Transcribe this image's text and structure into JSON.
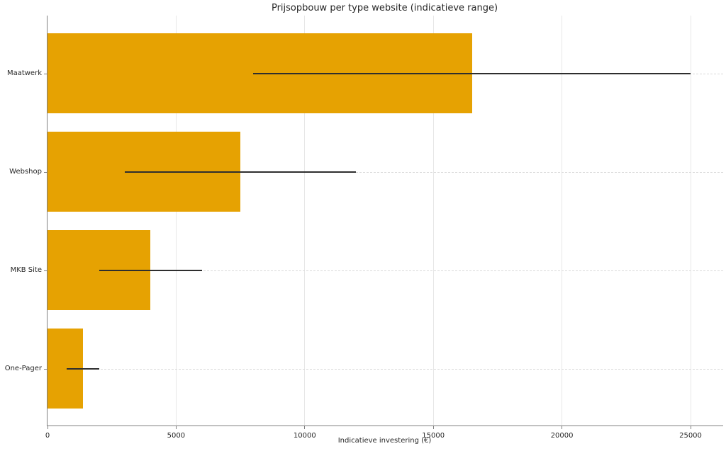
{
  "chart_data": {
    "type": "bar",
    "orientation": "horizontal",
    "title": "Prijsopbouw per type website (indicatieve range)",
    "xlabel": "Indicatieve investering (€)",
    "ylabel": "",
    "categories": [
      "Maatwerk",
      "Webshop",
      "MKB Site",
      "One-Pager"
    ],
    "values": [
      16500,
      7500,
      4000,
      1375
    ],
    "error_low": [
      8000,
      3000,
      2000,
      750
    ],
    "error_high": [
      25000,
      12000,
      6000,
      2000
    ],
    "xticks": [
      0,
      5000,
      10000,
      15000,
      20000,
      25000
    ],
    "xlim": [
      0,
      26250
    ],
    "grid": true,
    "legend": null,
    "colors": {
      "bar": "#E6A202",
      "error_bar": "#2e2e2e",
      "spine": "#7f7f7f",
      "grid_vertical": "#e7e7e7",
      "grid_horizontal": "#dadada",
      "text": "#262626",
      "background": "#ffffff"
    }
  }
}
